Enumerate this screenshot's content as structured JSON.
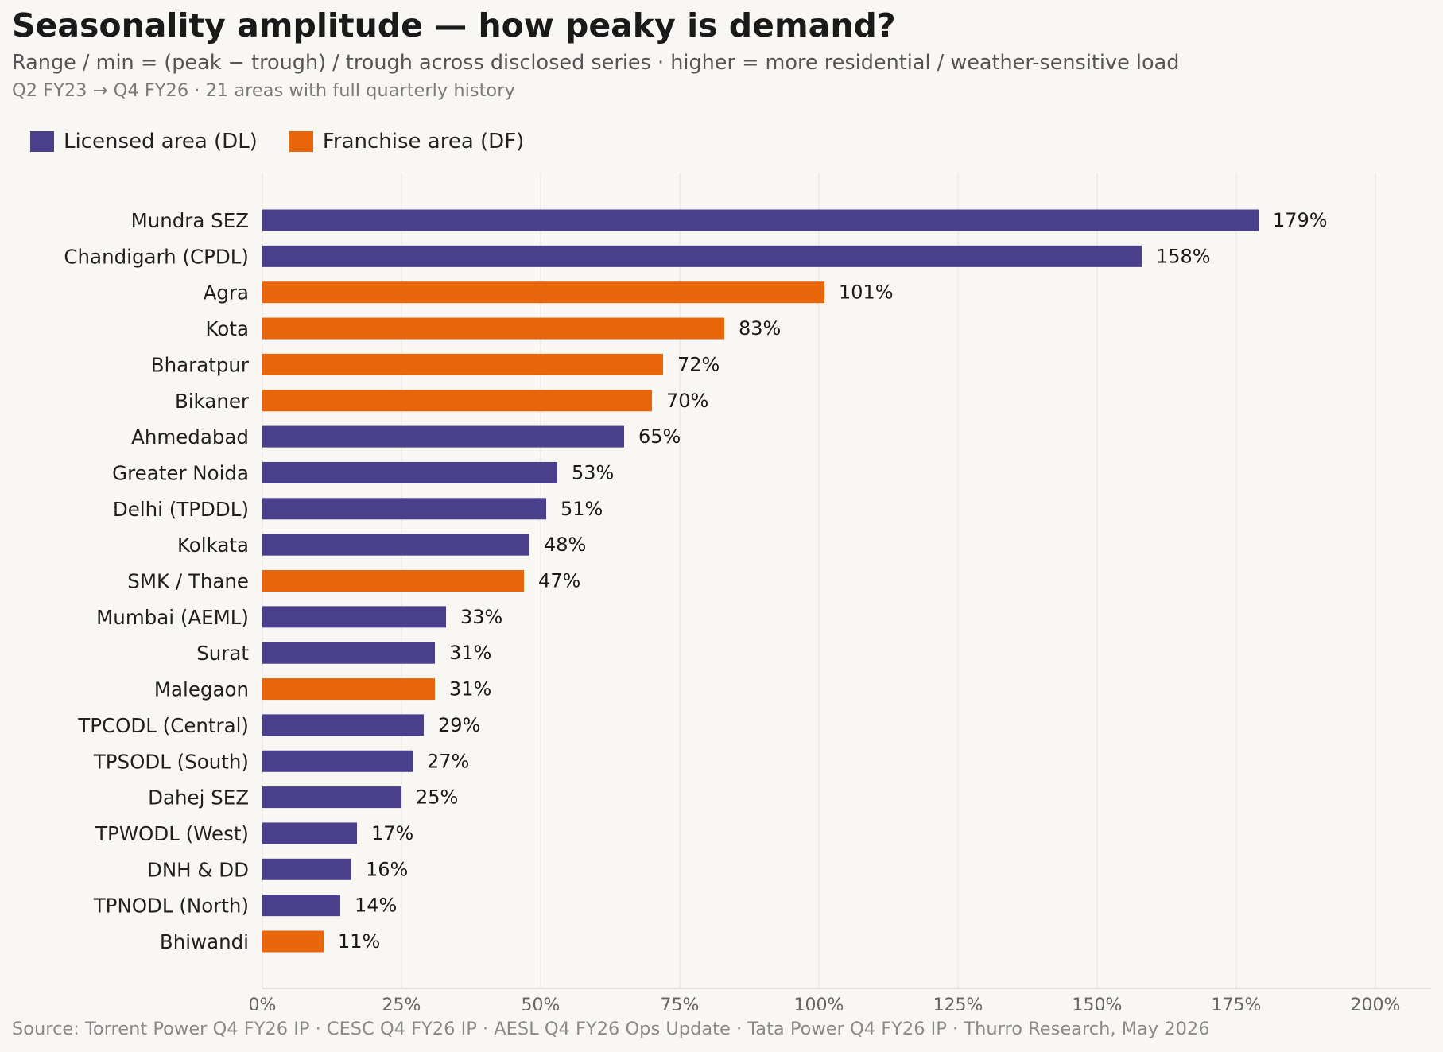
{
  "title": "Seasonality amplitude — how peaky is demand?",
  "subtitle": "Range / min = (peak − trough) / trough across disclosed series · higher = more residential / weather-sensitive load",
  "meta": "Q2 FY23 → Q4 FY26 · 21 areas with full quarterly history",
  "footer": "Source: Torrent Power Q4 FY26 IP · CESC Q4 FY26 IP · AESL Q4 FY26 Ops Update · Tata Power Q4 FY26 IP · Thurro Research, May 2026",
  "legend": [
    {
      "label": "Licensed area (DL)",
      "color": "#4a3f8a"
    },
    {
      "label": "Franchise area (DF)",
      "color": "#e8650a"
    }
  ],
  "chart_data": {
    "type": "bar",
    "orientation": "horizontal",
    "categories": [
      "Mundra SEZ",
      "Chandigarh (CPDL)",
      "Agra",
      "Kota",
      "Bharatpur",
      "Bikaner",
      "Ahmedabad",
      "Greater Noida",
      "Delhi (TPDDL)",
      "Kolkata",
      "SMK / Thane",
      "Mumbai (AEML)",
      "Surat",
      "Malegaon",
      "TPCODL (Central)",
      "TPSODL (South)",
      "Dahej SEZ",
      "TPWODL (West)",
      "DNH & DD",
      "TPNODL (North)",
      "Bhiwandi"
    ],
    "values": [
      179,
      158,
      101,
      83,
      72,
      70,
      65,
      53,
      51,
      48,
      47,
      33,
      31,
      31,
      29,
      27,
      25,
      17,
      16,
      14,
      11
    ],
    "value_labels": [
      "179%",
      "158%",
      "101%",
      "83%",
      "72%",
      "70%",
      "65%",
      "53%",
      "51%",
      "48%",
      "47%",
      "33%",
      "31%",
      "31%",
      "29%",
      "27%",
      "25%",
      "17%",
      "16%",
      "14%",
      "11%"
    ],
    "group": [
      "DL",
      "DL",
      "DF",
      "DF",
      "DF",
      "DF",
      "DL",
      "DL",
      "DL",
      "DL",
      "DF",
      "DL",
      "DL",
      "DF",
      "DL",
      "DL",
      "DL",
      "DL",
      "DL",
      "DL",
      "DF"
    ],
    "group_colors": {
      "DL": "#4a3f8a",
      "DF": "#e8650a"
    },
    "xlim": [
      0,
      210
    ],
    "xticks": [
      0,
      25,
      50,
      75,
      100,
      125,
      150,
      175,
      200
    ],
    "xtick_labels": [
      "0%",
      "25%",
      "50%",
      "75%",
      "100%",
      "125%",
      "150%",
      "175%",
      "200%"
    ],
    "grid": "vertical"
  }
}
